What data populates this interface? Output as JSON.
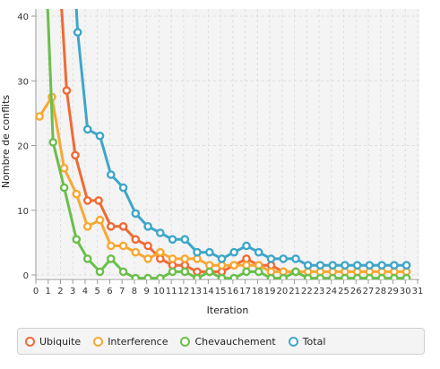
{
  "chart_data": {
    "type": "line",
    "title": "",
    "xlabel": "Iteration",
    "ylabel": "Nombre de conflits",
    "xlim": [
      0,
      31
    ],
    "ylim": [
      0,
      40
    ],
    "x_ticks": [
      0,
      1,
      2,
      3,
      4,
      5,
      6,
      7,
      8,
      9,
      10,
      11,
      12,
      13,
      14,
      15,
      16,
      17,
      18,
      19,
      20,
      21,
      22,
      23,
      24,
      25,
      26,
      27,
      28,
      29,
      30,
      31
    ],
    "y_ticks": [
      0,
      10,
      20,
      30,
      40
    ],
    "grid": true,
    "legend_position": "bottom",
    "series": [
      {
        "name": "Ubiquite",
        "color": "#f06a35",
        "points": [
          [
            2,
            44
          ],
          [
            2.5,
            28.5
          ],
          [
            3.2,
            18.5
          ],
          [
            4.2,
            11.5
          ],
          [
            5.1,
            11.5
          ],
          [
            6.1,
            7.5
          ],
          [
            7.1,
            7.5
          ],
          [
            8.1,
            5.5
          ],
          [
            9.1,
            4.5
          ],
          [
            10.1,
            2.5
          ],
          [
            11.1,
            1.5
          ],
          [
            12.1,
            1.5
          ],
          [
            13.1,
            0.5
          ],
          [
            14.1,
            0.5
          ],
          [
            15.1,
            0.5
          ],
          [
            16.1,
            1.5
          ],
          [
            17.1,
            2.5
          ],
          [
            18.1,
            1.5
          ],
          [
            19.1,
            1.5
          ],
          [
            20.1,
            0.5
          ],
          [
            21.1,
            0.5
          ]
        ]
      },
      {
        "name": "Interference",
        "color": "#f7a833",
        "points": [
          [
            0.3,
            24.5
          ],
          [
            1.3,
            27.5
          ],
          [
            2.3,
            16.5
          ],
          [
            3.3,
            12.5
          ],
          [
            4.2,
            7.5
          ],
          [
            5.2,
            8.5
          ],
          [
            6.1,
            4.5
          ],
          [
            7.1,
            4.5
          ],
          [
            8.1,
            3.5
          ],
          [
            9.1,
            2.5
          ],
          [
            10.1,
            3.5
          ],
          [
            11.1,
            2.5
          ],
          [
            12.1,
            2.5
          ],
          [
            13.1,
            2.5
          ],
          [
            14.1,
            1.5
          ],
          [
            15.1,
            1.5
          ],
          [
            16.1,
            1.5
          ],
          [
            17.1,
            1.5
          ],
          [
            18.1,
            1.5
          ],
          [
            19.1,
            0.5
          ],
          [
            20.1,
            0.5
          ],
          [
            21.1,
            0.5
          ],
          [
            22.1,
            0.5
          ],
          [
            23.1,
            0.5
          ],
          [
            24.1,
            0.5
          ],
          [
            25.1,
            0.5
          ],
          [
            26.1,
            0.5
          ],
          [
            27.1,
            0.5
          ],
          [
            28.1,
            0.5
          ],
          [
            29.1,
            0.5
          ],
          [
            30.1,
            0.5
          ]
        ]
      },
      {
        "name": "Chevauchement",
        "color": "#6abf4b",
        "points": [
          [
            0.9,
            44
          ],
          [
            1.4,
            20.5
          ],
          [
            2.3,
            13.5
          ],
          [
            3.3,
            5.5
          ],
          [
            4.2,
            2.5
          ],
          [
            5.2,
            0.5
          ],
          [
            6.1,
            2.5
          ],
          [
            7.1,
            0.5
          ],
          [
            8.1,
            -0.5
          ],
          [
            9.1,
            -0.5
          ],
          [
            10.1,
            -0.5
          ],
          [
            11.1,
            0.5
          ],
          [
            12.1,
            0.5
          ],
          [
            13.1,
            -0.5
          ],
          [
            14.1,
            0.5
          ],
          [
            15.1,
            -0.5
          ],
          [
            16.1,
            -0.5
          ],
          [
            17.1,
            0.5
          ],
          [
            18.1,
            0.5
          ],
          [
            19.1,
            -0.5
          ],
          [
            20.1,
            -0.5
          ],
          [
            21.1,
            0.5
          ],
          [
            22.1,
            -0.5
          ],
          [
            23.1,
            -0.5
          ],
          [
            24.1,
            -0.5
          ],
          [
            25.1,
            -0.5
          ],
          [
            26.1,
            -0.5
          ],
          [
            27.1,
            -0.5
          ],
          [
            28.1,
            -0.5
          ],
          [
            29.1,
            -0.5
          ],
          [
            30.1,
            -0.5
          ]
        ]
      },
      {
        "name": "Total",
        "color": "#3ea6c9",
        "points": [
          [
            3.2,
            44
          ],
          [
            3.4,
            37.5
          ],
          [
            4.2,
            22.5
          ],
          [
            5.2,
            21.5
          ],
          [
            6.1,
            15.5
          ],
          [
            7.1,
            13.5
          ],
          [
            8.1,
            9.5
          ],
          [
            9.1,
            7.5
          ],
          [
            10.1,
            6.5
          ],
          [
            11.1,
            5.5
          ],
          [
            12.1,
            5.5
          ],
          [
            13.1,
            3.5
          ],
          [
            14.1,
            3.5
          ],
          [
            15.1,
            2.5
          ],
          [
            16.1,
            3.5
          ],
          [
            17.1,
            4.5
          ],
          [
            18.1,
            3.5
          ],
          [
            19.1,
            2.5
          ],
          [
            20.1,
            2.5
          ],
          [
            21.1,
            2.5
          ],
          [
            22.1,
            1.5
          ],
          [
            23.1,
            1.5
          ],
          [
            24.1,
            1.5
          ],
          [
            25.1,
            1.5
          ],
          [
            26.1,
            1.5
          ],
          [
            27.1,
            1.5
          ],
          [
            28.1,
            1.5
          ],
          [
            29.1,
            1.5
          ],
          [
            30.1,
            1.5
          ]
        ]
      }
    ]
  }
}
